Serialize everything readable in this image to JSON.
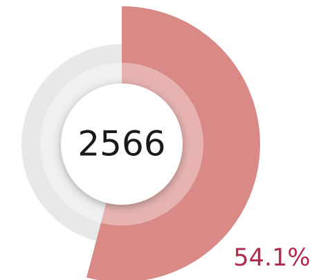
{
  "chart_data": {
    "type": "donut",
    "values": [
      54.1
    ],
    "value_labels": [
      "54.1%"
    ],
    "center_label": 2566,
    "ylim": [
      0,
      100
    ],
    "color": "#d98a87",
    "track_color": "#e7e8ea",
    "label_color": "#b3294c"
  }
}
